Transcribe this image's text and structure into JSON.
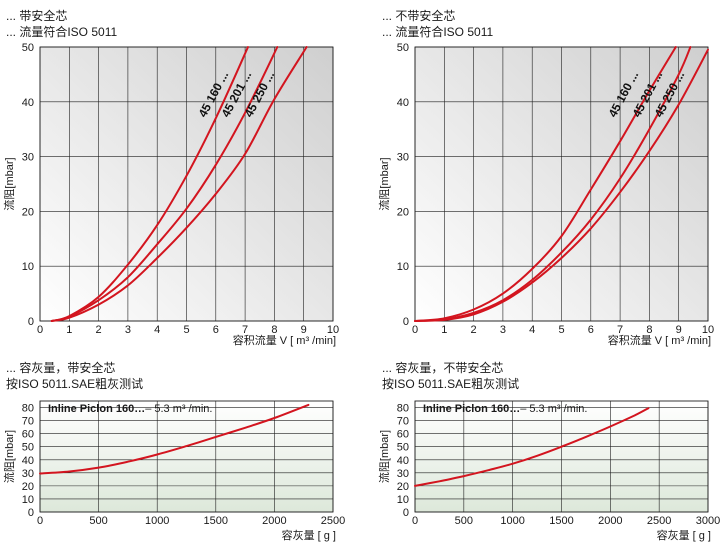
{
  "captions": {
    "top_left_1": "... 带安全芯",
    "top_left_2": "... 流量符合ISO 5011",
    "top_right_1": "... 不带安全芯",
    "top_right_2": "... 流量符合ISO 5011",
    "bottom_left_1": "... 容灰量，带安全芯",
    "bottom_left_2": "按ISO 5011.SAE粗灰测试",
    "bottom_right_1": "... 容灰量，不带安全芯",
    "bottom_right_2": "按ISO 5011.SAE粗灰测试"
  },
  "colors": {
    "curve": "#d3151f",
    "grid": "#1f1f1f",
    "pressure_bg_top": "#cfcfcf",
    "pressure_bg_bottom": "#ffffff",
    "dust_bg_top": "#ffffff",
    "dust_bg_bottom": "#dde8da"
  },
  "chart_data": [
    {
      "type": "line",
      "ylabel": "流阻[mbar]",
      "xlabel": "容积流量 V [ m³ /min]",
      "xticks": [
        "0",
        "1",
        "2",
        "3",
        "4",
        "5",
        "6",
        "7",
        "8",
        "9",
        "10"
      ],
      "yticks": [
        "0",
        "10",
        "20",
        "30",
        "40",
        "50"
      ],
      "xlim": [
        0,
        10
      ],
      "ylim": [
        0,
        50
      ],
      "grid": true,
      "series": [
        {
          "name": "45 160 ...",
          "x": [
            0.4,
            1,
            2,
            3,
            4,
            5,
            6,
            7.1
          ],
          "y": [
            0,
            0.9,
            4.4,
            10.3,
            17.5,
            26.5,
            37,
            50
          ]
        },
        {
          "name": "45 201 ...",
          "x": [
            0.4,
            1,
            2,
            3,
            4,
            5,
            6,
            7,
            8.1
          ],
          "y": [
            0,
            0.8,
            3.8,
            8,
            14,
            20.5,
            28.5,
            38,
            50
          ]
        },
        {
          "name": "45 250 ...",
          "x": [
            0.4,
            1,
            2,
            3,
            4,
            5,
            6,
            7,
            8,
            9.1
          ],
          "y": [
            0,
            0.6,
            3,
            6.5,
            11.5,
            17,
            23.2,
            30.5,
            40.5,
            50
          ]
        }
      ]
    },
    {
      "type": "line",
      "ylabel": "流阻[mbar]",
      "xlabel": "容积流量 V [ m³ /min]",
      "xticks": [
        "0",
        "1",
        "2",
        "3",
        "4",
        "5",
        "6",
        "7",
        "8",
        "9",
        "10"
      ],
      "yticks": [
        "0",
        "10",
        "20",
        "30",
        "40",
        "50"
      ],
      "xlim": [
        0,
        10
      ],
      "ylim": [
        0,
        50
      ],
      "grid": true,
      "series": [
        {
          "name": "45 160 ...",
          "x": [
            0,
            1,
            2,
            3,
            4,
            5,
            6,
            7,
            8,
            8.9
          ],
          "y": [
            0,
            0.5,
            2.1,
            5,
            9.5,
            15.5,
            24,
            32.8,
            42,
            50
          ]
        },
        {
          "name": "45 201 ...",
          "x": [
            0,
            1,
            2,
            3,
            4,
            5,
            6,
            7,
            8,
            9,
            9.4
          ],
          "y": [
            0,
            0.3,
            1.5,
            3.8,
            7.5,
            12.5,
            18.5,
            26,
            35,
            45,
            50
          ]
        },
        {
          "name": "45 250 ...",
          "x": [
            0,
            1,
            2,
            3,
            4,
            5,
            6,
            7,
            8,
            9,
            10
          ],
          "y": [
            0,
            0.2,
            1.2,
            3.5,
            7,
            11.5,
            16.9,
            23.5,
            31,
            39.5,
            49.5
          ]
        }
      ]
    },
    {
      "type": "line",
      "title": "Inline Piclon 160…– 5.3 m³ /min.",
      "ylabel": "流阻[mbar]",
      "xlabel": "容灰量 [ g ]",
      "xticks": [
        "0",
        "500",
        "1000",
        "1500",
        "2000",
        "2500"
      ],
      "yticks": [
        "0",
        "10",
        "20",
        "30",
        "40",
        "50",
        "60",
        "70",
        "80"
      ],
      "xlim": [
        0,
        2500
      ],
      "ylim": [
        0,
        85
      ],
      "grid": true,
      "series": [
        {
          "x": [
            0,
            250,
            500,
            750,
            1000,
            1250,
            1500,
            1750,
            2000,
            2290
          ],
          "y": [
            29.5,
            31,
            34,
            38.5,
            44,
            50.5,
            57.5,
            64.5,
            72,
            82
          ]
        }
      ]
    },
    {
      "type": "line",
      "title": "Inline Piclon 160…– 5.3 m³ /min.",
      "ylabel": "流阻[mbar]",
      "xlabel": "容灰量 [ g ]",
      "xticks": [
        "0",
        "500",
        "1000",
        "1500",
        "2000",
        "2500",
        "3000"
      ],
      "yticks": [
        "0",
        "10",
        "20",
        "30",
        "40",
        "50",
        "60",
        "70",
        "80"
      ],
      "xlim": [
        0,
        3000
      ],
      "ylim": [
        0,
        85
      ],
      "grid": true,
      "series": [
        {
          "x": [
            0,
            250,
            500,
            750,
            1000,
            1250,
            1500,
            1750,
            2000,
            2250,
            2390
          ],
          "y": [
            20,
            23.5,
            27.5,
            32,
            37,
            43,
            50,
            57.5,
            65.5,
            74,
            79.5
          ]
        }
      ]
    }
  ]
}
